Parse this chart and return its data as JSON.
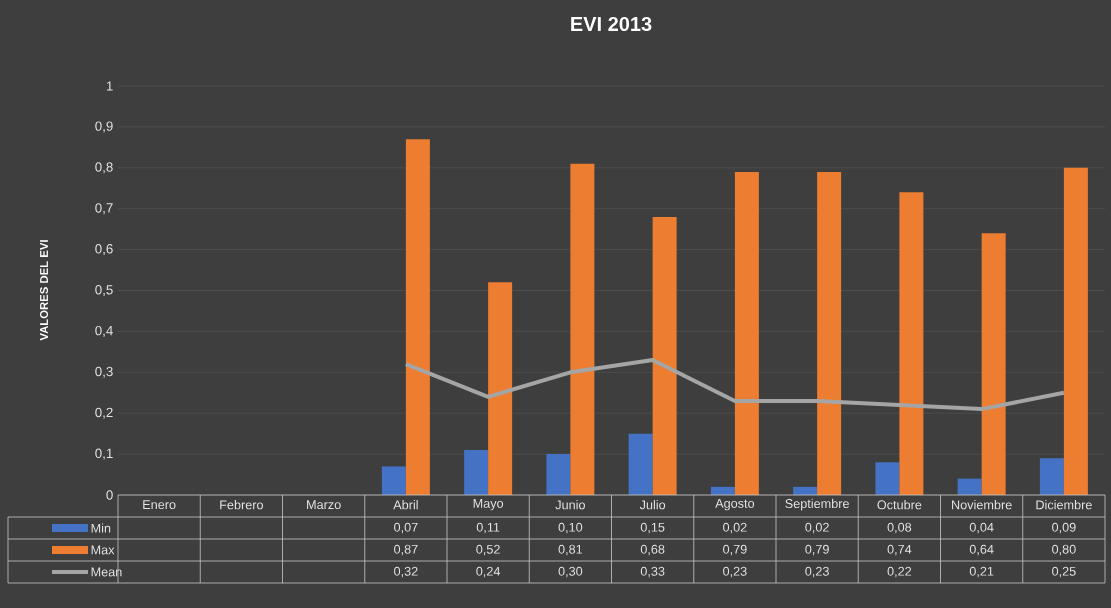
{
  "chart_data": {
    "type": "bar",
    "title": "EVI 2013",
    "ylabel": "VALORES DEL EVI",
    "categories": [
      "Enero",
      "Febrero",
      "Marzo",
      "Abril",
      "Mayo",
      "Junio",
      "Julio",
      "Agosto",
      "Septiembre",
      "Octubre",
      "Noviembre",
      "Diciembre"
    ],
    "series": [
      {
        "name": "Min",
        "color": "#4472c4",
        "values": [
          null,
          null,
          null,
          0.07,
          0.11,
          0.1,
          0.15,
          0.02,
          0.02,
          0.08,
          0.04,
          0.09
        ],
        "value_labels": [
          null,
          null,
          null,
          "0,07",
          "0,11",
          "0,10",
          "0,15",
          "0,02",
          "0,02",
          "0,08",
          "0,04",
          "0,09"
        ]
      },
      {
        "name": "Max",
        "color": "#ed7d31",
        "values": [
          null,
          null,
          null,
          0.87,
          0.52,
          0.81,
          0.68,
          0.79,
          0.79,
          0.74,
          0.64,
          0.8
        ],
        "value_labels": [
          null,
          null,
          null,
          "0,87",
          "0,52",
          "0,81",
          "0,68",
          "0,79",
          "0,79",
          "0,74",
          "0,64",
          "0,80"
        ]
      },
      {
        "name": "Mean",
        "type": "line",
        "color": "#a5a5a5",
        "values": [
          null,
          null,
          null,
          0.32,
          0.24,
          0.3,
          0.33,
          0.23,
          0.23,
          0.22,
          0.21,
          0.25
        ],
        "value_labels": [
          null,
          null,
          null,
          "0,32",
          "0,24",
          "0,30",
          "0,33",
          "0,23",
          "0,23",
          "0,22",
          "0,21",
          "0,25"
        ]
      }
    ],
    "ylim": [
      0,
      1
    ],
    "yticks": [
      0,
      {
        "value": 0.1,
        "label": "0,1"
      },
      {
        "value": 0.2,
        "label": "0,2"
      },
      {
        "value": 0.3,
        "label": "0,3"
      },
      {
        "value": 0.4,
        "label": "0,4"
      },
      {
        "value": 0.5,
        "label": "0,5"
      },
      {
        "value": 0.6,
        "label": "0,6"
      },
      {
        "value": 0.7,
        "label": "0,7"
      },
      {
        "value": 0.8,
        "label": "0,8"
      },
      {
        "value": 0.9,
        "label": "0,9"
      },
      1
    ],
    "grid": "y",
    "legend": "bottom"
  }
}
